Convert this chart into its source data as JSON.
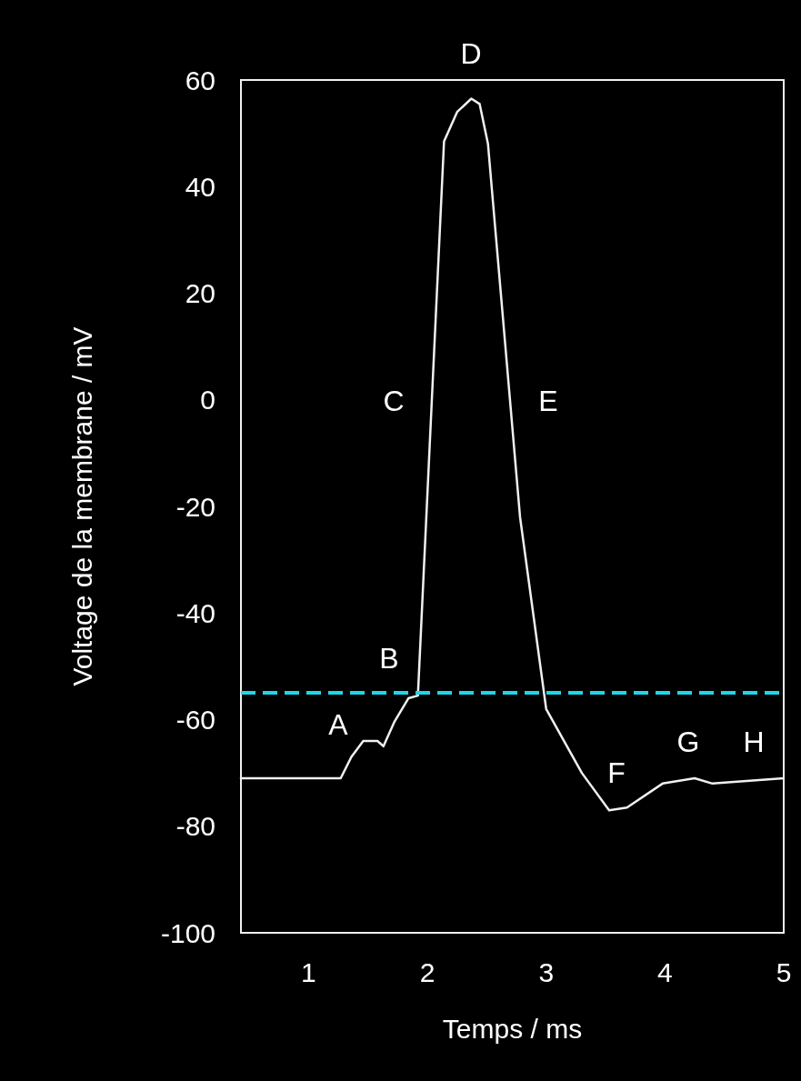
{
  "chart_data": {
    "type": "line",
    "xlabel": "Temps / ms",
    "ylabel": "Voltage de la membrane / mV",
    "x": [
      0.43,
      1.27,
      1.36,
      1.46,
      1.58,
      1.63,
      1.72,
      1.84,
      1.92,
      2.14,
      2.25,
      2.37,
      2.44,
      2.51,
      2.78,
      3.0,
      3.3,
      3.53,
      3.68,
      3.98,
      4.25,
      4.4,
      5.0
    ],
    "series": [
      {
        "color": "#f0f0f0",
        "values": [
          -71,
          -71,
          -67,
          -64,
          -64,
          -65,
          -60.5,
          -56,
          -55.5,
          48.5,
          54,
          56.5,
          55.5,
          48,
          -22,
          -58,
          -70,
          -77,
          -76.5,
          -72,
          -71,
          -72,
          -71
        ]
      }
    ],
    "xlim": [
      0.43,
      5
    ],
    "xticks": [
      1,
      2,
      3,
      4,
      5
    ],
    "ylim": [
      -100,
      60
    ],
    "yticks": [
      -100,
      -80,
      -60,
      -40,
      -20,
      0,
      20,
      40,
      60
    ],
    "grid": false,
    "marker": "none",
    "line_style": "solid",
    "ref_lines": [
      {
        "axis": "y",
        "value": -55,
        "color": "#1ed6ea",
        "line_style": "dashed"
      }
    ],
    "annotations": [
      "A",
      "B",
      "C",
      "D",
      "E",
      "F",
      "G",
      "H"
    ]
  }
}
